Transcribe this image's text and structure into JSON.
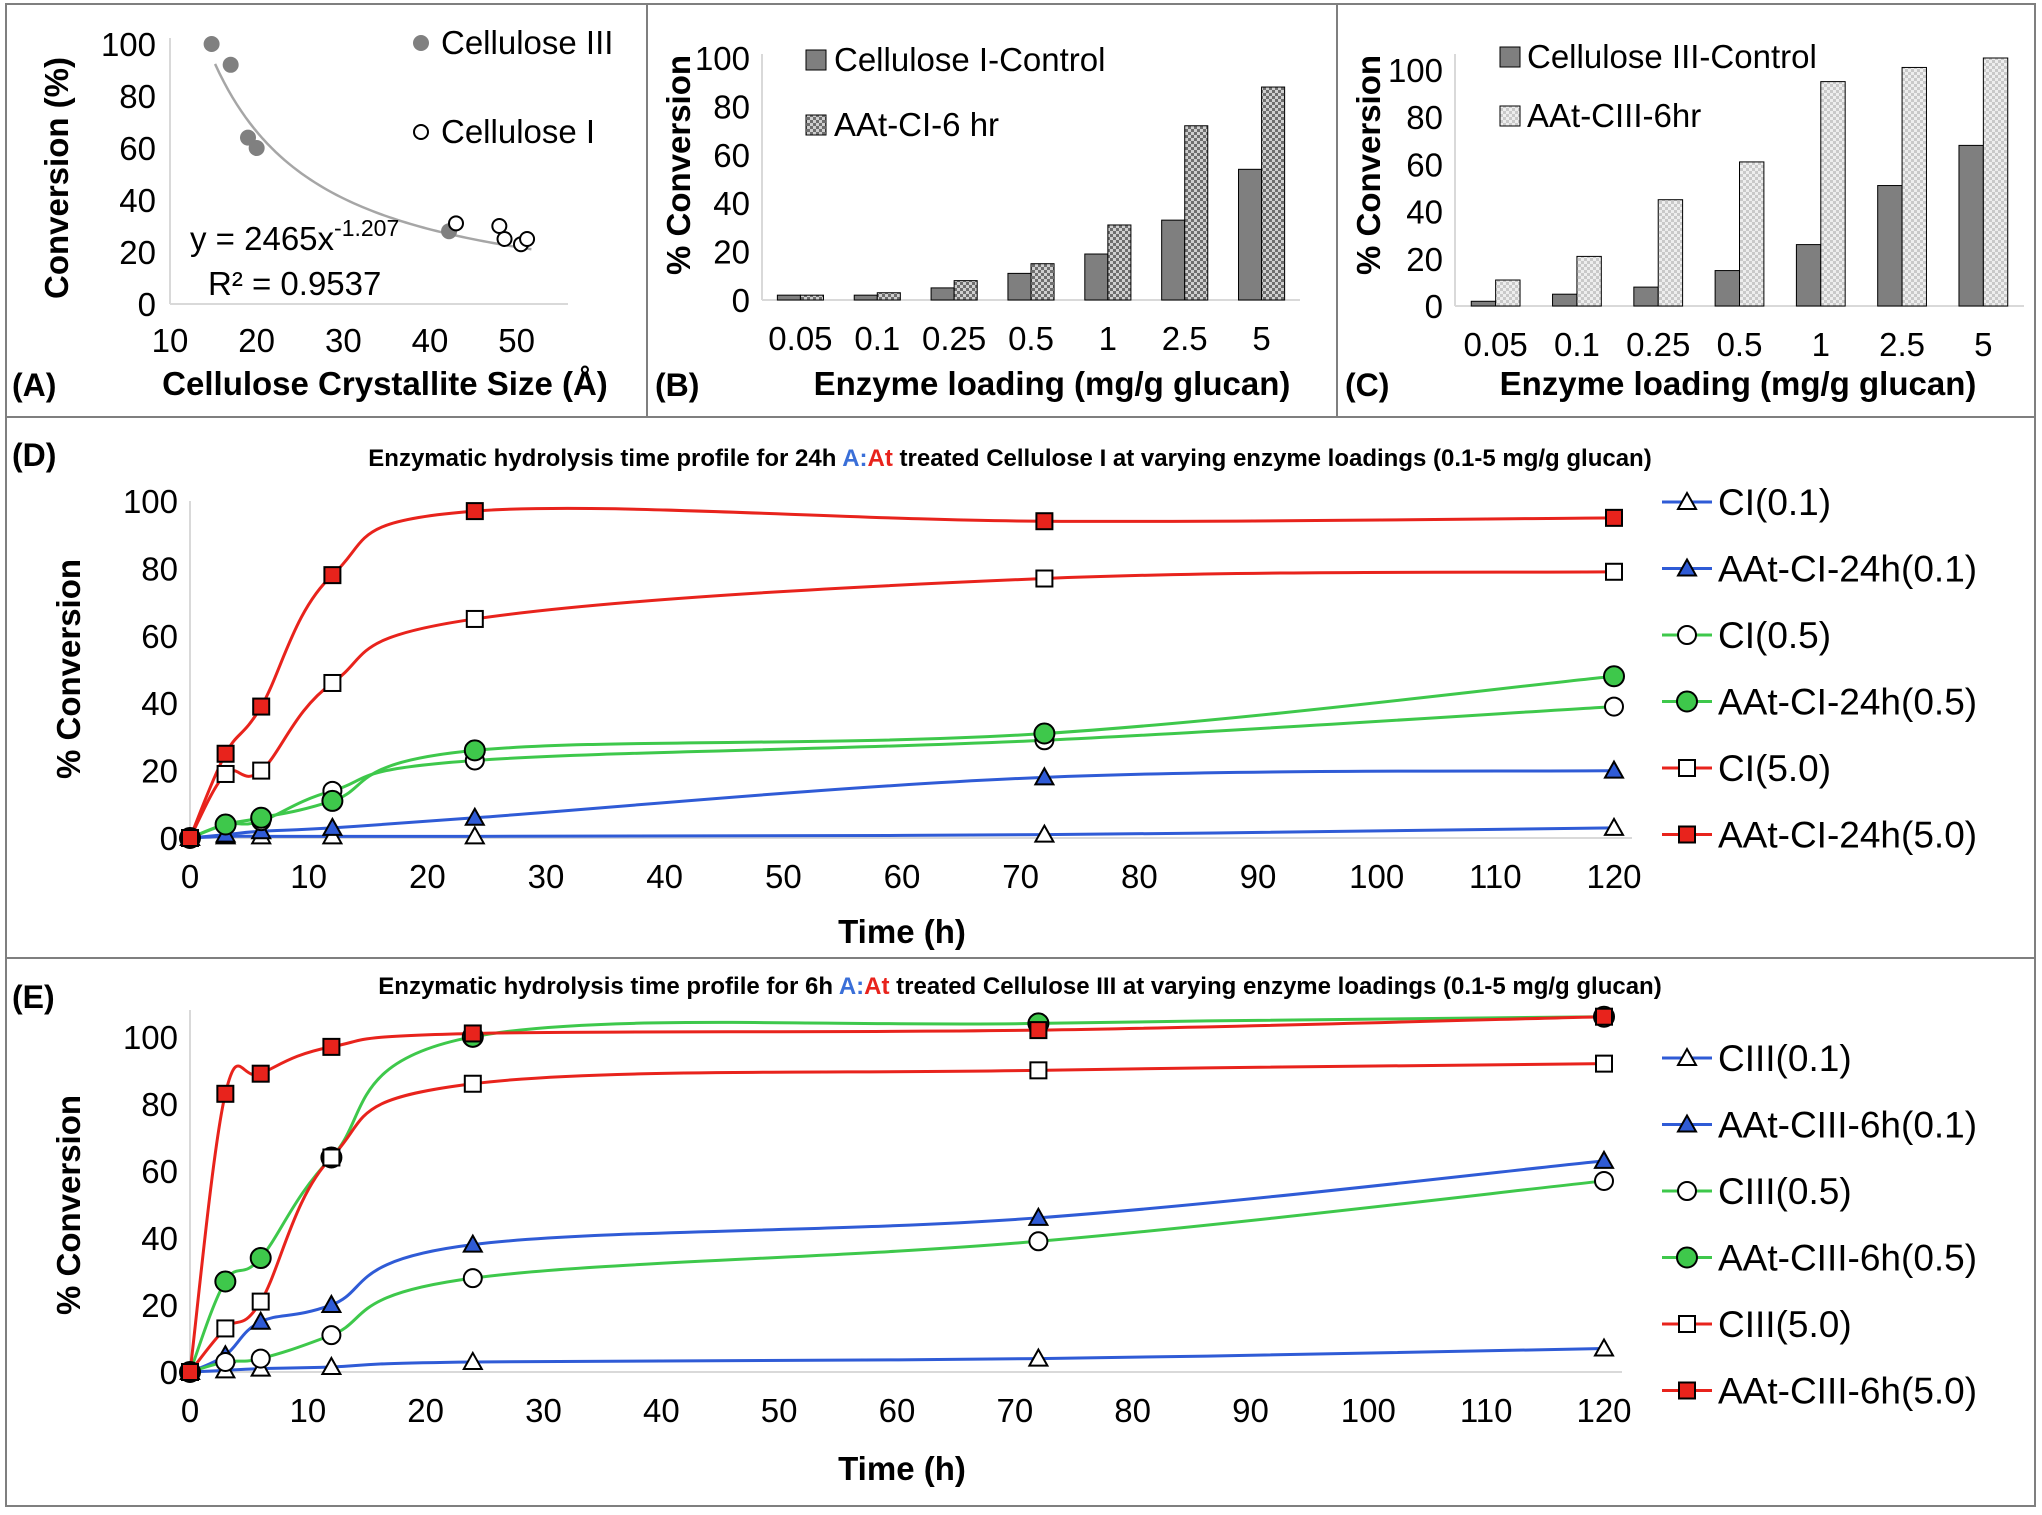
{
  "colors": {
    "gray_marker": "#808080",
    "bar_dark": "#7f7f7f",
    "bar_light": "#d9d9d9",
    "blue": "#2f5bd6",
    "green": "#3ec84b",
    "red": "#e8231c",
    "accent_blue": "#3a6fd8",
    "accent_red": "#e8231c"
  },
  "chart_data": [
    {
      "panel": "(A)",
      "type": "scatter",
      "xlabel": "Cellulose Crystallite Size (Å)",
      "ylabel": "Conversion (%)",
      "xlim": [
        10,
        55
      ],
      "ylim": [
        0,
        100
      ],
      "xticks": [
        "10",
        "20",
        "30",
        "40",
        "50"
      ],
      "yticks": [
        "0",
        "20",
        "40",
        "60",
        "80",
        "100"
      ],
      "series": [
        {
          "name": "Cellulose III",
          "marker": "filled-circle",
          "points": [
            [
              14.8,
              100
            ],
            [
              17,
              92
            ],
            [
              19,
              64
            ],
            [
              20,
              60
            ],
            [
              42.2,
              28
            ]
          ]
        },
        {
          "name": "Cellulose I",
          "marker": "open-circle",
          "points": [
            [
              43,
              31
            ],
            [
              48,
              30
            ],
            [
              48.6,
              25
            ],
            [
              50.5,
              23
            ],
            [
              51.2,
              25
            ]
          ]
        }
      ],
      "trendline": {
        "a": 2465,
        "b": -1.207,
        "x_range": [
          15.2,
          52
        ]
      },
      "equation_label": "y = 2465x",
      "equation_exponent": "-1.207",
      "r2_label": "R² = 0.9537"
    },
    {
      "panel": "(B)",
      "type": "bar",
      "xlabel": "Enzyme loading (mg/g glucan)",
      "ylabel": "% Conversion",
      "ylim": [
        0,
        100
      ],
      "yticks": [
        "0",
        "20",
        "40",
        "60",
        "80",
        "100"
      ],
      "categories": [
        "0.05",
        "0.1",
        "0.25",
        "0.5",
        "1",
        "2.5",
        "5"
      ],
      "series": [
        {
          "name": "Cellulose I-Control",
          "style": "solid",
          "values": [
            2,
            2,
            5,
            11,
            19,
            33,
            54
          ]
        },
        {
          "name": "AAt-CI-6 hr",
          "style": "pattern",
          "values": [
            2,
            3,
            8,
            15,
            31,
            72,
            88
          ]
        }
      ]
    },
    {
      "panel": "(C)",
      "type": "bar",
      "xlabel": "Enzyme loading (mg/g glucan)",
      "ylabel": "% Conversion",
      "ylim": [
        0,
        105
      ],
      "yticks": [
        "0",
        "20",
        "40",
        "60",
        "80",
        "100"
      ],
      "categories": [
        "0.05",
        "0.1",
        "0.25",
        "0.5",
        "1",
        "2.5",
        "5"
      ],
      "series": [
        {
          "name": "Cellulose III-Control",
          "style": "solid",
          "values": [
            2,
            5,
            8,
            15,
            26,
            51,
            68
          ]
        },
        {
          "name": "AAt-CIII-6hr",
          "style": "pattern",
          "values": [
            11,
            21,
            45,
            61,
            95,
            101,
            105
          ]
        }
      ]
    },
    {
      "panel": "(D)",
      "type": "line",
      "title_pre": "Enzymatic hydrolysis time profile for 24h ",
      "title_A": "A:",
      "title_At": "At",
      "title_post": " treated Cellulose I at varying enzyme loadings (0.1-5 mg/g glucan)",
      "xlabel": "Time (h)",
      "ylabel": "% Conversion",
      "xlim": [
        0,
        120
      ],
      "ylim": [
        0,
        100
      ],
      "xticks": [
        "0",
        "10",
        "20",
        "30",
        "40",
        "50",
        "60",
        "70",
        "80",
        "90",
        "100",
        "110",
        "120"
      ],
      "yticks": [
        "0",
        "20",
        "40",
        "60",
        "80",
        "100"
      ],
      "x": [
        0,
        3,
        6,
        12,
        24,
        72,
        120
      ],
      "series": [
        {
          "name": "CI(0.1)",
          "color": "blue",
          "marker": "triangle-open",
          "values": [
            0,
            0.5,
            0.5,
            0.5,
            0.5,
            1,
            3
          ]
        },
        {
          "name": "AAt-CI-24h(0.1)",
          "color": "blue",
          "marker": "triangle-filled",
          "values": [
            0,
            1,
            2,
            3,
            6,
            18,
            20
          ]
        },
        {
          "name": "CI(0.5)",
          "color": "green",
          "marker": "circle-open",
          "values": [
            0,
            4,
            5,
            14,
            23,
            29,
            39
          ]
        },
        {
          "name": "AAt-CI-24h(0.5)",
          "color": "green",
          "marker": "circle-filled",
          "values": [
            0,
            4,
            6,
            11,
            26,
            31,
            48
          ]
        },
        {
          "name": "CI(5.0)",
          "color": "red",
          "marker": "square-open",
          "values": [
            0,
            19,
            20,
            46,
            65,
            77,
            79
          ]
        },
        {
          "name": "AAt-CI-24h(5.0)",
          "color": "red",
          "marker": "square-filled",
          "values": [
            0,
            25,
            39,
            78,
            97,
            94,
            95
          ]
        }
      ]
    },
    {
      "panel": "(E)",
      "type": "line",
      "title_pre": "Enzymatic hydrolysis time profile for 6h ",
      "title_A": "A:",
      "title_At": "At",
      "title_post": " treated Cellulose III at varying enzyme loadings (0.1-5 mg/g glucan)",
      "xlabel": "Time (h)",
      "ylabel": "% Conversion",
      "xlim": [
        0,
        120
      ],
      "ylim": [
        0,
        108
      ],
      "xticks": [
        "0",
        "10",
        "20",
        "30",
        "40",
        "50",
        "60",
        "70",
        "80",
        "90",
        "100",
        "110",
        "120"
      ],
      "yticks": [
        "0",
        "20",
        "40",
        "60",
        "80",
        "100"
      ],
      "x": [
        0,
        3,
        6,
        12,
        24,
        72,
        120
      ],
      "series": [
        {
          "name": "CIII(0.1)",
          "color": "blue",
          "marker": "triangle-open",
          "values": [
            0,
            0.5,
            1,
            1.5,
            3,
            4,
            7
          ]
        },
        {
          "name": "AAt-CIII-6h(0.1)",
          "color": "blue",
          "marker": "triangle-filled",
          "values": [
            0,
            5,
            15,
            20,
            38,
            46,
            63
          ]
        },
        {
          "name": "CIII(0.5)",
          "color": "green",
          "marker": "circle-open",
          "values": [
            0,
            3,
            4,
            11,
            28,
            39,
            57
          ]
        },
        {
          "name": "AAt-CIII-6h(0.5)",
          "color": "green",
          "marker": "circle-filled",
          "values": [
            0,
            27,
            34,
            64,
            100,
            104,
            106
          ]
        },
        {
          "name": "CIII(5.0)",
          "color": "red",
          "marker": "square-open",
          "values": [
            0,
            13,
            21,
            64,
            86,
            90,
            92
          ]
        },
        {
          "name": "AAt-CIII-6h(5.0)",
          "color": "red",
          "marker": "square-filled",
          "values": [
            0,
            83,
            89,
            97,
            101,
            102,
            106
          ]
        }
      ]
    }
  ]
}
